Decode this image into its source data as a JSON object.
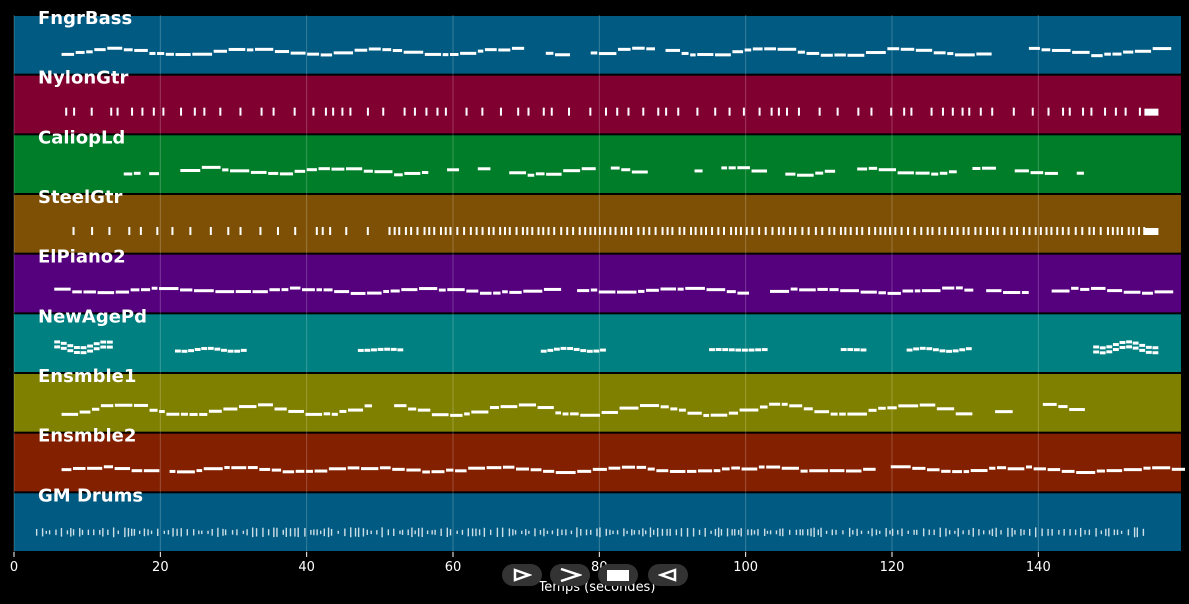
{
  "chart_data": {
    "type": "piano-roll",
    "xlabel": "Temps (secondes)",
    "xlim": [
      0,
      159.5
    ],
    "x_ticks": [
      0,
      20,
      40,
      60,
      80,
      100,
      120,
      140
    ],
    "grid": true,
    "tracks": [
      {
        "name": "FngrBass",
        "color": "#005a82",
        "style": "bass",
        "start": 6.5,
        "end": 159.5
      },
      {
        "name": "NylonGtr",
        "color": "#800030",
        "style": "ticks",
        "start": 7,
        "end": 156.5
      },
      {
        "name": "CaliopLd",
        "color": "#007d28",
        "style": "melody",
        "start": 15,
        "end": 145.5
      },
      {
        "name": "SteelGtr",
        "color": "#7d5005",
        "style": "ticks",
        "start": 8,
        "end": 156.5
      },
      {
        "name": "ElPiano2",
        "color": "#55007d",
        "style": "line",
        "start": 5.5,
        "end": 156.5
      },
      {
        "name": "NewAgePd",
        "color": "#008080",
        "style": "pads",
        "start": 5.5,
        "end": 156
      },
      {
        "name": "Ensmble1",
        "color": "#808000",
        "style": "wave",
        "start": 6.5,
        "end": 145.5
      },
      {
        "name": "Ensmble2",
        "color": "#822000",
        "style": "line",
        "start": 6.5,
        "end": 159.5
      },
      {
        "name": "GM Drums",
        "color": "#005a82",
        "style": "drums",
        "start": 3,
        "end": 155
      }
    ]
  },
  "controls": {
    "play_icon": "play-outline-icon",
    "forward_icon": "chevron-right-icon",
    "stop_icon": "stop-icon",
    "back_icon": "play-reverse-icon"
  }
}
